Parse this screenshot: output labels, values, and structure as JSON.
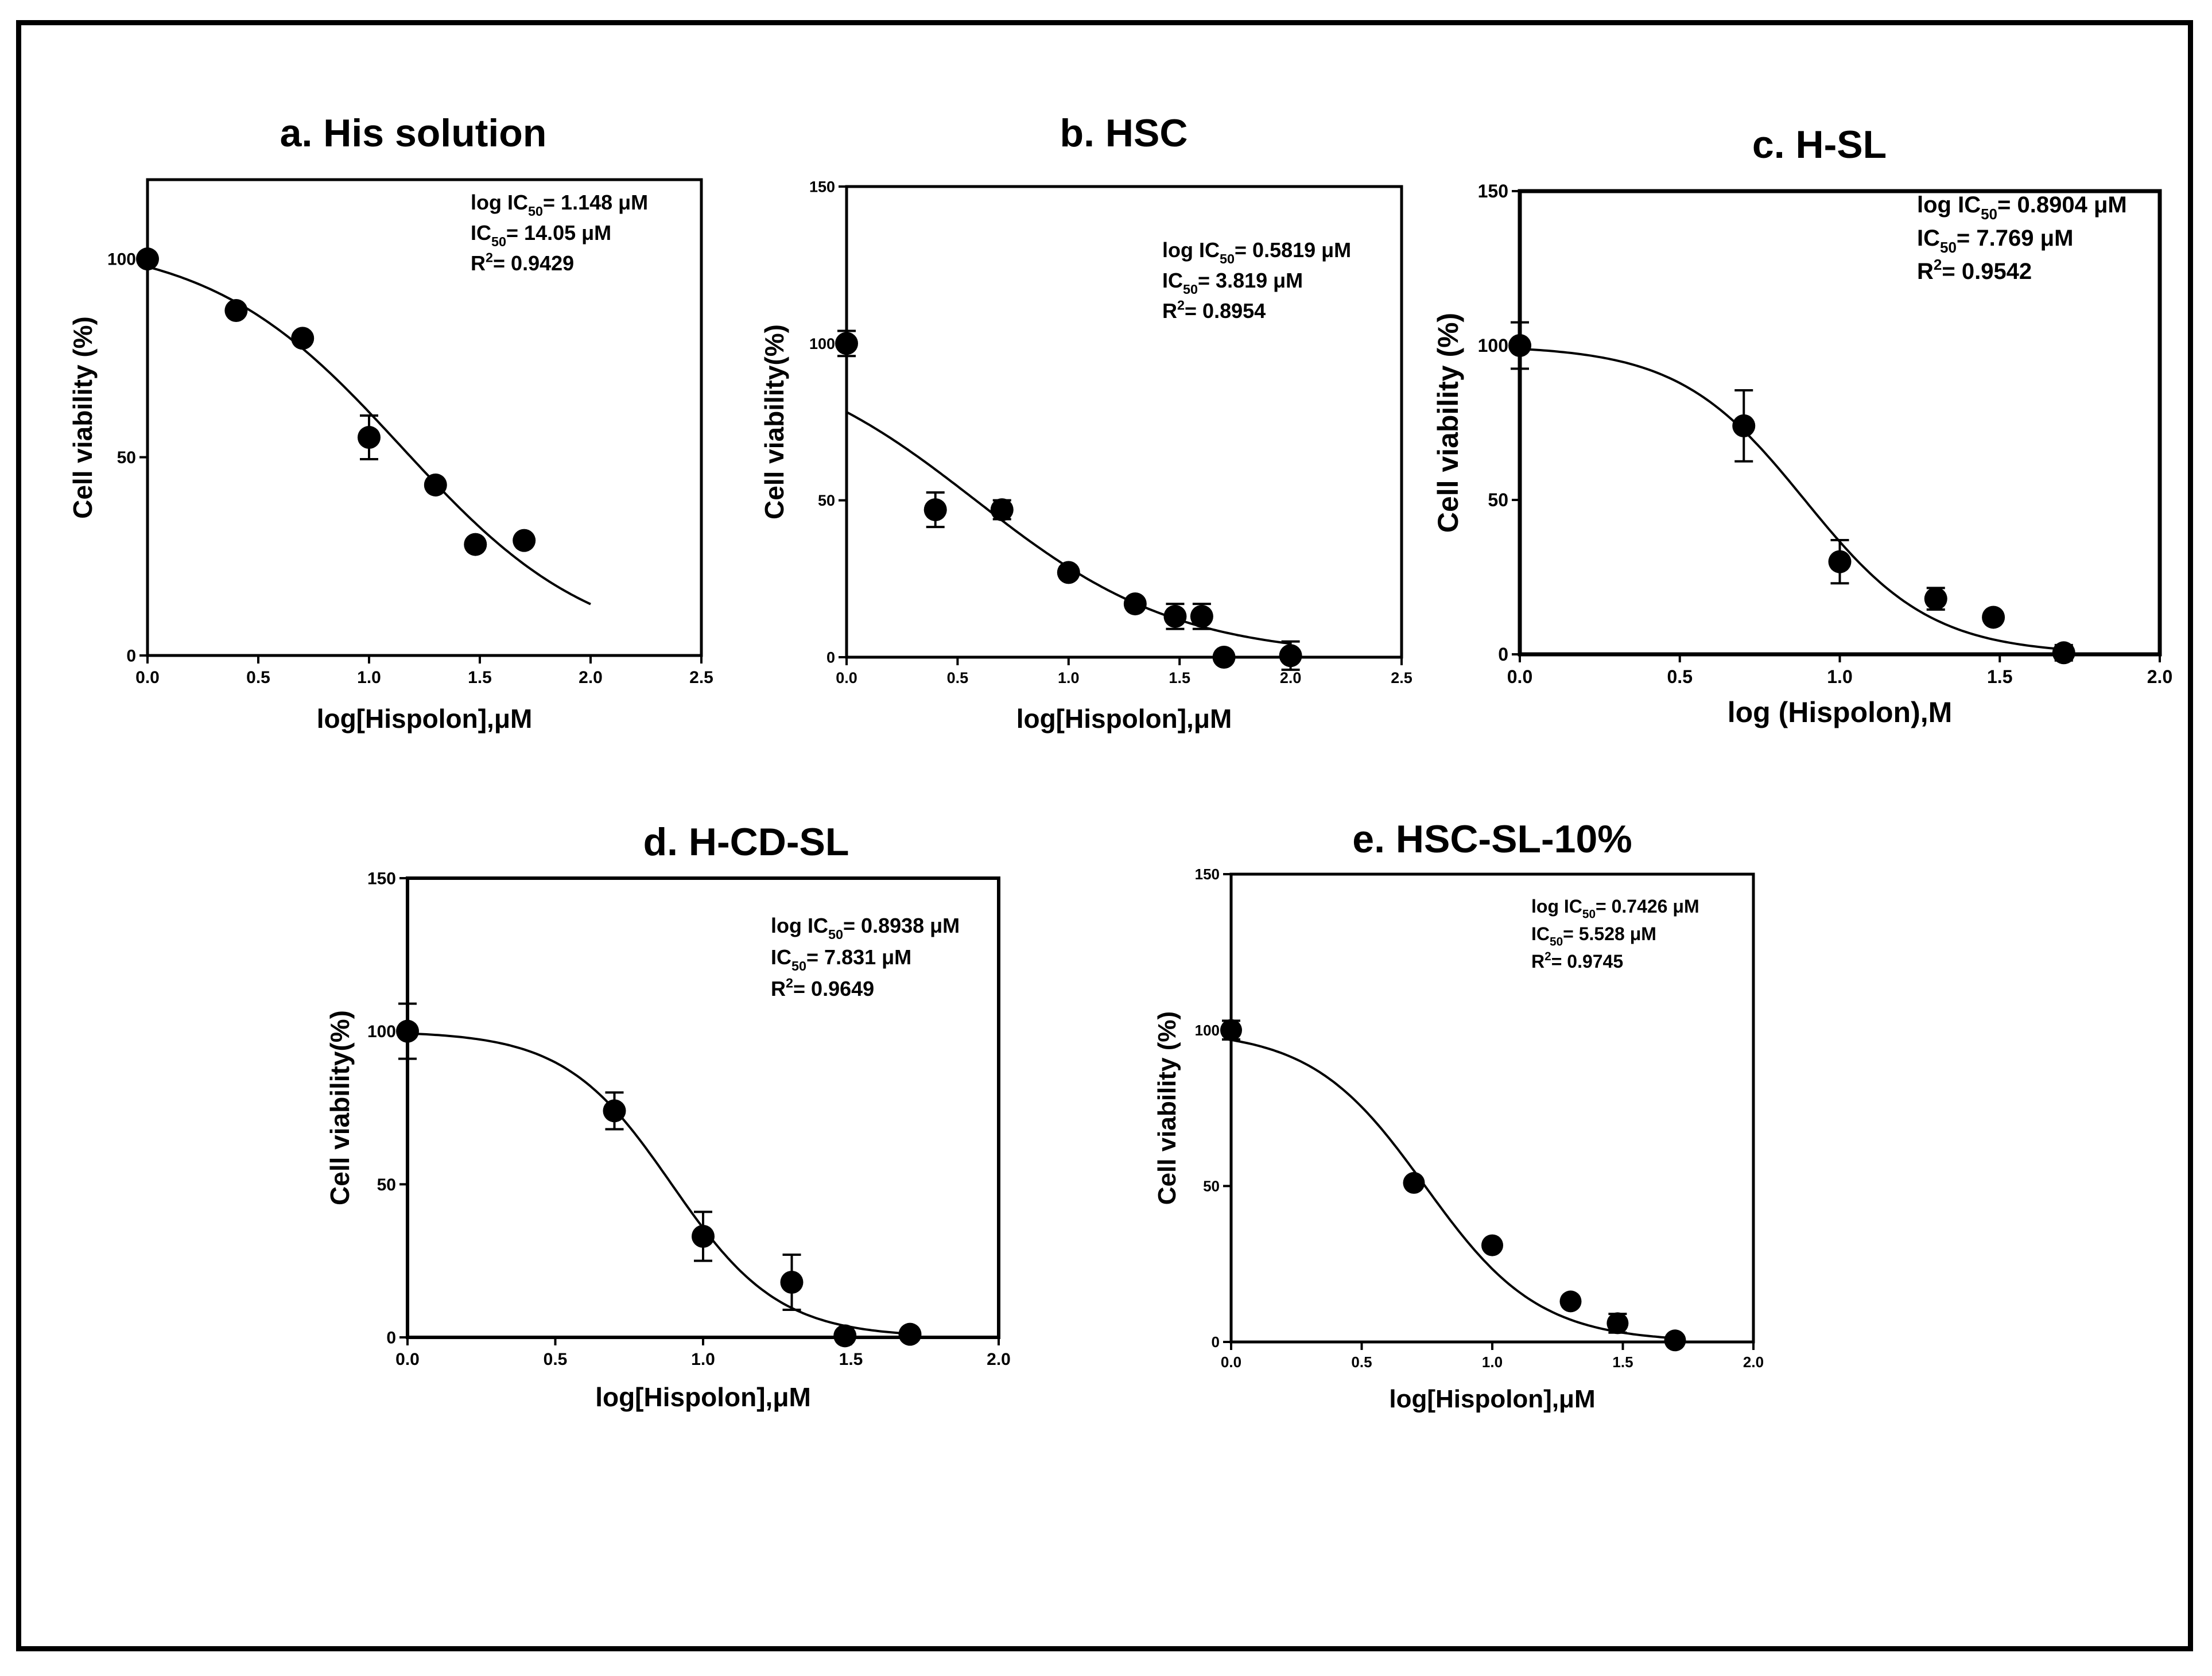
{
  "figure": {
    "frame_color": "#000000",
    "line_color": "#000000",
    "marker_color": "#000000"
  },
  "chart_data": [
    {
      "type": "scatter",
      "title": "a. His solution",
      "xlabel": "log[Hispolon],μM",
      "ylabel": "Cell viability (%)",
      "xlim": [
        0,
        2.5
      ],
      "ylim": [
        0,
        120
      ],
      "xticks": [
        0,
        0.5,
        1.0,
        1.5,
        2.0,
        2.5
      ],
      "xtick_labels": [
        "0.0",
        "0.5",
        "1.0",
        "1.5",
        "2.0",
        "2.5"
      ],
      "yticks": [
        0,
        50,
        100
      ],
      "ytick_labels": [
        "0",
        "50",
        "100"
      ],
      "points": [
        {
          "x": 0.0,
          "y": 100,
          "err": 0
        },
        {
          "x": 0.4,
          "y": 87,
          "err": 0
        },
        {
          "x": 0.7,
          "y": 80,
          "err": 0
        },
        {
          "x": 1.0,
          "y": 55,
          "err": 5.5
        },
        {
          "x": 1.3,
          "y": 43,
          "err": 0
        },
        {
          "x": 1.48,
          "y": 28,
          "err": 0
        },
        {
          "x": 1.7,
          "y": 29,
          "err": 0
        }
      ],
      "curve": {
        "top": 105,
        "bottom": 0,
        "logIC50": 1.148,
        "hill": 1.0,
        "x_range": [
          0,
          2.0
        ]
      },
      "annotations": [
        {
          "main": "log IC",
          "sub": "50",
          "rest": "= 1.148 μM"
        },
        {
          "main": "IC",
          "sub": "50",
          "rest": "= 14.05 μM"
        },
        {
          "main": "R",
          "sup": "2",
          "rest": "= 0.9429"
        }
      ]
    },
    {
      "type": "scatter",
      "title": "b. HSC",
      "xlabel": "log[Hispolon],μM",
      "ylabel": "Cell viability(%)",
      "xlim": [
        0,
        2.5
      ],
      "ylim": [
        0,
        150
      ],
      "xticks": [
        0,
        0.5,
        1.0,
        1.5,
        2.0,
        2.5
      ],
      "xtick_labels": [
        "0.0",
        "0.5",
        "1.0",
        "1.5",
        "2.0",
        "2.5"
      ],
      "yticks": [
        0,
        50,
        100,
        150
      ],
      "ytick_labels": [
        "0",
        "50",
        "100",
        "150"
      ],
      "points": [
        {
          "x": 0.0,
          "y": 100,
          "err": 4
        },
        {
          "x": 0.4,
          "y": 47,
          "err": 5.5
        },
        {
          "x": 0.7,
          "y": 47,
          "err": 3
        },
        {
          "x": 1.0,
          "y": 27,
          "err": 0
        },
        {
          "x": 1.3,
          "y": 17,
          "err": 0
        },
        {
          "x": 1.48,
          "y": 13,
          "err": 4
        },
        {
          "x": 1.6,
          "y": 13,
          "err": 4
        },
        {
          "x": 1.7,
          "y": 0,
          "err": 0
        },
        {
          "x": 2.0,
          "y": 0.5,
          "err": 4.5
        }
      ],
      "curve": {
        "top": 100,
        "bottom": 0,
        "logIC50": 0.5819,
        "hill": 0.95,
        "x_range": [
          0,
          2.0
        ]
      },
      "annotations": [
        {
          "main": "log IC",
          "sub": "50",
          "rest": "= 0.5819 μM"
        },
        {
          "main": "IC",
          "sub": "50",
          "rest": "= 3.819 μM"
        },
        {
          "main": "R",
          "sup": "2",
          "rest": "= 0.8954"
        }
      ]
    },
    {
      "type": "scatter",
      "title": "c. H-SL",
      "xlabel": "log (Hispolon),M",
      "ylabel": "Cell viability (%)",
      "xlim": [
        0,
        2.0
      ],
      "ylim": [
        0,
        150
      ],
      "xticks": [
        0,
        0.5,
        1.0,
        1.5,
        2.0
      ],
      "xtick_labels": [
        "0.0",
        "0.5",
        "1.0",
        "1.5",
        "2.0"
      ],
      "yticks": [
        0,
        50,
        100,
        150
      ],
      "ytick_labels": [
        "0",
        "50",
        "100",
        "150"
      ],
      "points": [
        {
          "x": 0.0,
          "y": 100,
          "err": 7.5
        },
        {
          "x": 0.7,
          "y": 74,
          "err": 11.5
        },
        {
          "x": 1.0,
          "y": 30,
          "err": 7
        },
        {
          "x": 1.3,
          "y": 18,
          "err": 3.5
        },
        {
          "x": 1.48,
          "y": 12,
          "err": 0
        },
        {
          "x": 1.7,
          "y": 0.5,
          "err": 2.5
        }
      ],
      "curve": {
        "top": 100,
        "bottom": 0,
        "logIC50": 0.8904,
        "hill": 2.2,
        "x_range": [
          0,
          1.7
        ]
      },
      "annotations": [
        {
          "main": "log IC",
          "sub": "50",
          "rest": "= 0.8904 μM"
        },
        {
          "main": "IC",
          "sub": "50",
          "rest": "= 7.769 μM"
        },
        {
          "main": "R",
          "sup": "2",
          "rest": "= 0.9542"
        }
      ]
    },
    {
      "type": "scatter",
      "title": "d. H-CD-SL",
      "xlabel": "log[Hispolon],μM",
      "ylabel": "Cell viability(%)",
      "xlim": [
        0,
        2.0
      ],
      "ylim": [
        0,
        150
      ],
      "xticks": [
        0,
        0.5,
        1.0,
        1.5,
        2.0
      ],
      "xtick_labels": [
        "0.0",
        "0.5",
        "1.0",
        "1.5",
        "2.0"
      ],
      "yticks": [
        0,
        50,
        100,
        150
      ],
      "ytick_labels": [
        "0",
        "50",
        "100",
        "150"
      ],
      "points": [
        {
          "x": 0.0,
          "y": 100,
          "err": 9
        },
        {
          "x": 0.7,
          "y": 74,
          "err": 6
        },
        {
          "x": 1.0,
          "y": 33,
          "err": 8
        },
        {
          "x": 1.3,
          "y": 18,
          "err": 9
        },
        {
          "x": 1.48,
          "y": 0.5,
          "err": 0
        },
        {
          "x": 1.7,
          "y": 1,
          "err": 0
        }
      ],
      "curve": {
        "top": 100,
        "bottom": 0,
        "logIC50": 0.8938,
        "hill": 2.4,
        "x_range": [
          0,
          1.7
        ]
      },
      "annotations": [
        {
          "main": "log IC",
          "sub": "50",
          "rest": "= 0.8938 μM"
        },
        {
          "main": "IC",
          "sub": "50",
          "rest": "= 7.831 μM"
        },
        {
          "main": "R",
          "sup": "2",
          "rest": "= 0.9649"
        }
      ]
    },
    {
      "type": "scatter",
      "title": "e. HSC-SL-10%",
      "xlabel": "log[Hispolon],μM",
      "ylabel": "Cell viability (%)",
      "xlim": [
        0,
        2.0
      ],
      "ylim": [
        0,
        150
      ],
      "xticks": [
        0,
        0.5,
        1.0,
        1.5,
        2.0
      ],
      "xtick_labels": [
        "0.0",
        "0.5",
        "1.0",
        "1.5",
        "2.0"
      ],
      "yticks": [
        0,
        50,
        100,
        150
      ],
      "ytick_labels": [
        "0",
        "50",
        "100",
        "150"
      ],
      "points": [
        {
          "x": 0.0,
          "y": 100,
          "err": 3
        },
        {
          "x": 0.7,
          "y": 51,
          "err": 0
        },
        {
          "x": 1.0,
          "y": 31,
          "err": 0
        },
        {
          "x": 1.3,
          "y": 13,
          "err": 0
        },
        {
          "x": 1.48,
          "y": 6,
          "err": 3
        },
        {
          "x": 1.7,
          "y": 0.5,
          "err": 0
        }
      ],
      "curve": {
        "top": 100,
        "bottom": 0,
        "logIC50": 0.7426,
        "hill": 2.0,
        "x_range": [
          0,
          1.7
        ]
      },
      "annotations": [
        {
          "main": "log IC",
          "sub": "50",
          "rest": "= 0.7426 μM"
        },
        {
          "main": "IC",
          "sub": "50",
          "rest": "= 5.528 μM"
        },
        {
          "main": "R",
          "sup": "2",
          "rest": "= 0.9745"
        }
      ]
    }
  ]
}
